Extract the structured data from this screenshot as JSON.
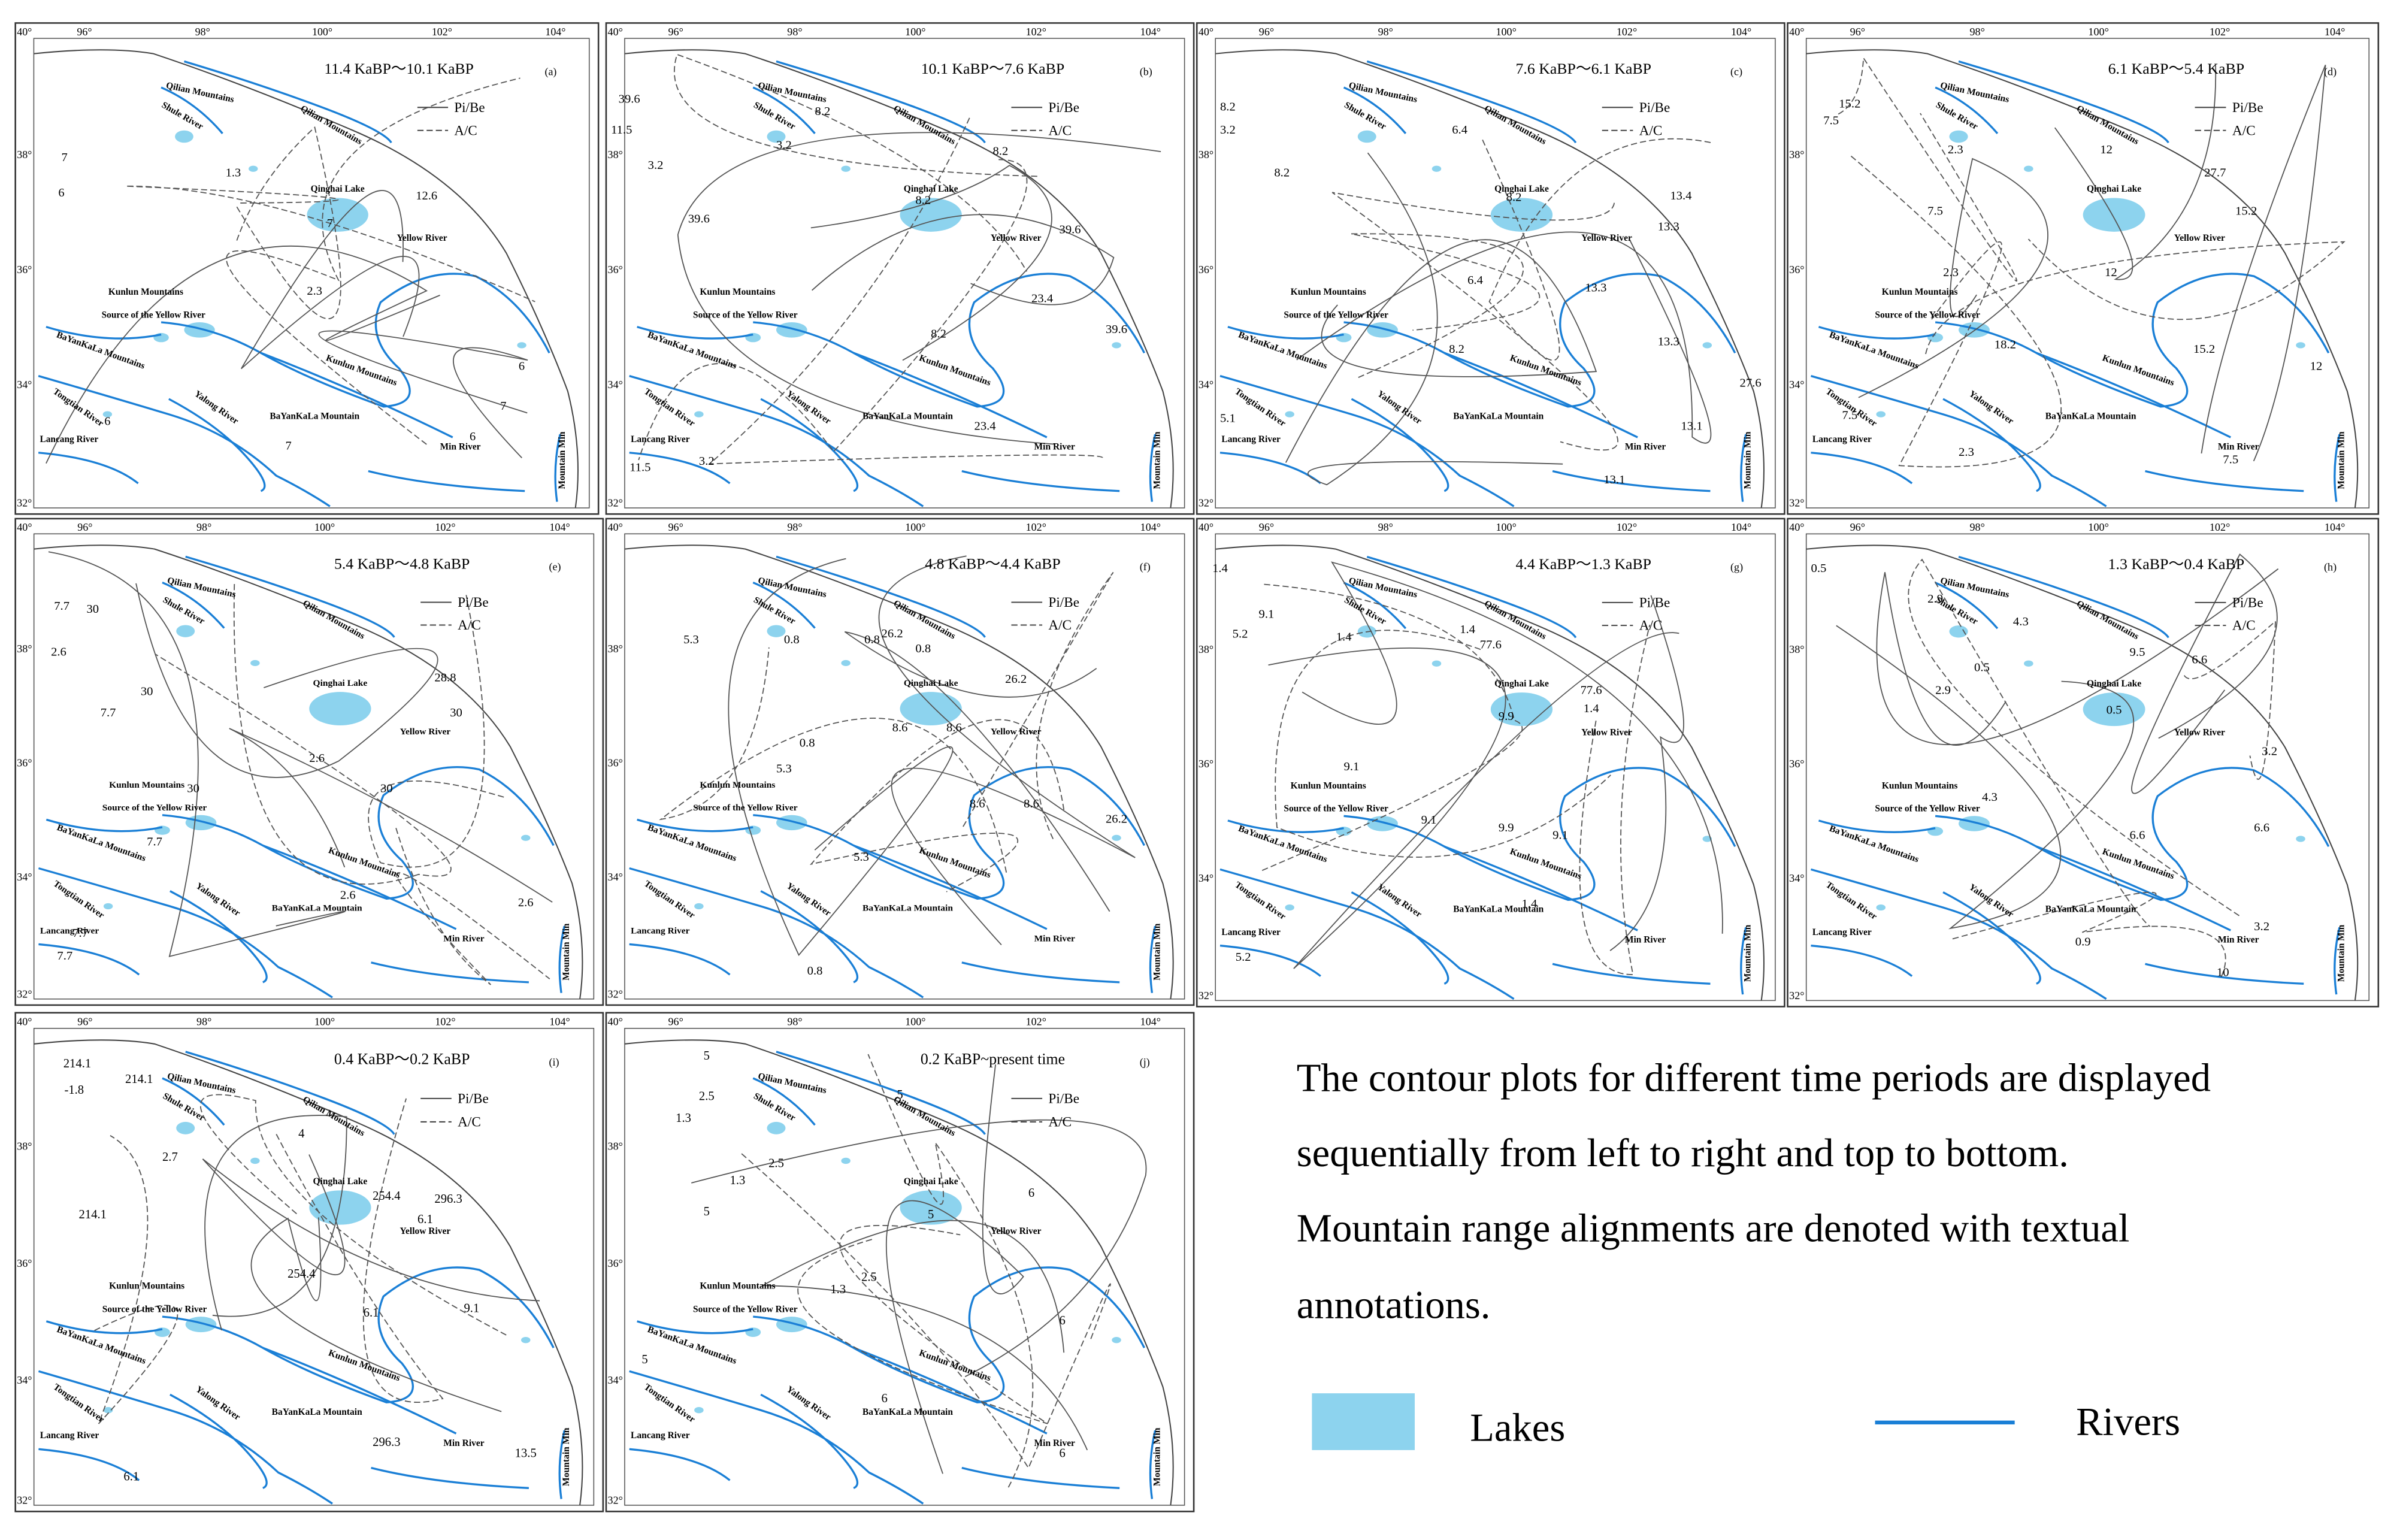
{
  "panels": [
    {
      "title": "11.4 KaBP～10.1 KaBP",
      "label": "(a)",
      "contour_labels": [
        "7",
        "6",
        "1.3",
        "12.6",
        "7",
        "2.3",
        "6",
        "7",
        "6",
        "6",
        "7"
      ]
    },
    {
      "title": "10.1 KaBP～7.6 KaBP",
      "label": "(b)",
      "contour_labels": [
        "39.6",
        "11.5",
        "3.2",
        "39.6",
        "8.2",
        "3.2",
        "8.2",
        "8.2",
        "39.6",
        "23.4",
        "39.6",
        "8.2",
        "23.4",
        "11.5",
        "3.2"
      ]
    },
    {
      "title": "7.6 KaBP～6.1 KaBP",
      "label": "(c)",
      "contour_labels": [
        "8.2",
        "3.2",
        "8.2",
        "6.4",
        "8.2",
        "13.4",
        "13.3",
        "13.3",
        "6.4",
        "8.2",
        "13.3",
        "13.1",
        "27.6",
        "5.1",
        "13.1"
      ]
    },
    {
      "title": "6.1 KaBP～5.4 KaBP",
      "label": "(d)",
      "contour_labels": [
        "15.2",
        "7.5",
        "2.3",
        "12",
        "27.7",
        "15.2",
        "7.5",
        "2.3",
        "12",
        "15.2",
        "18.2",
        "12",
        "7.5",
        "2.3",
        "7.5"
      ]
    },
    {
      "title": "5.4 KaBP～4.8 KaBP",
      "label": "(e)",
      "contour_labels": [
        "7.7",
        "30",
        "2.6",
        "30",
        "7.7",
        "28.8",
        "30",
        "2.6",
        "30",
        "7.7",
        "30",
        "2.6",
        "7.7",
        "7.7",
        "2.6"
      ]
    },
    {
      "title": "4.8 KaBP～4.4 KaBP",
      "label": "(f)",
      "contour_labels": [
        "5.3",
        "0.8",
        "0.8",
        "26.2",
        "0.8",
        "8.6",
        "8.6",
        "26.2",
        "5.3",
        "0.8",
        "8.6",
        "8.6",
        "26.2",
        "5.3",
        "0.8"
      ]
    },
    {
      "title": "4.4 KaBP～1.3 KaBP",
      "label": "(g)",
      "contour_labels": [
        "1.4",
        "9.1",
        "5.2",
        "1.4",
        "77.6",
        "1.4",
        "77.6",
        "9.9",
        "1.4",
        "9.1",
        "9.1",
        "9.9",
        "9.1",
        "1.4",
        "5.2"
      ]
    },
    {
      "title": "1.3 KaBP～0.4 KaBP",
      "label": "(h)",
      "contour_labels": [
        "0.5",
        "2.9",
        "4.3",
        "9.5",
        "6.6",
        "0.5",
        "2.9",
        "0.5",
        "3.2",
        "4.3",
        "6.6",
        "6.6",
        "0.9",
        "3.2",
        "10"
      ]
    },
    {
      "title": "0.4 KaBP～0.2 KaBP",
      "label": "(i)",
      "contour_labels": [
        "214.1",
        "-1.8",
        "214.1",
        "2.7",
        "4",
        "254.4",
        "296.3",
        "6.1",
        "214.1",
        "254.4",
        "6.1",
        "9.1",
        "296.3",
        "6.1",
        "13.5"
      ]
    },
    {
      "title": "0.2 KaBP~present time",
      "label": "(j)",
      "contour_labels": [
        "5",
        "2.5",
        "1.3",
        "2.5",
        "5",
        "1.3",
        "5",
        "5",
        "6",
        "1.3",
        "2.5",
        "6",
        "5",
        "6",
        "6"
      ]
    }
  ],
  "map_labels": [
    "Qilian Mountains",
    "Shule River",
    "Qinghai Lake",
    "Yellow River",
    "Kunlun Mountains",
    "Source of the Yellow River",
    "BaYanKaLa Mountains",
    "Tongtian River",
    "Yalong River",
    "BaYanKaLa Mountain",
    "Lancang River",
    "Min River",
    "Mountain Min"
  ],
  "legend": [
    "Pi/Be",
    "A/C"
  ],
  "lon_ticks": [
    "96°",
    "98°",
    "100°",
    "102°",
    "104°"
  ],
  "lat_ticks": [
    "40°",
    "38°",
    "36°",
    "34°",
    "32°"
  ],
  "caption": [
    "The contour plots for different time periods are displayed",
    "sequentially from left to right and top to bottom.",
    "Mountain range alignments are denoted with textual",
    "annotations."
  ],
  "key": {
    "lakes": "Lakes",
    "rivers": "Rivers"
  }
}
